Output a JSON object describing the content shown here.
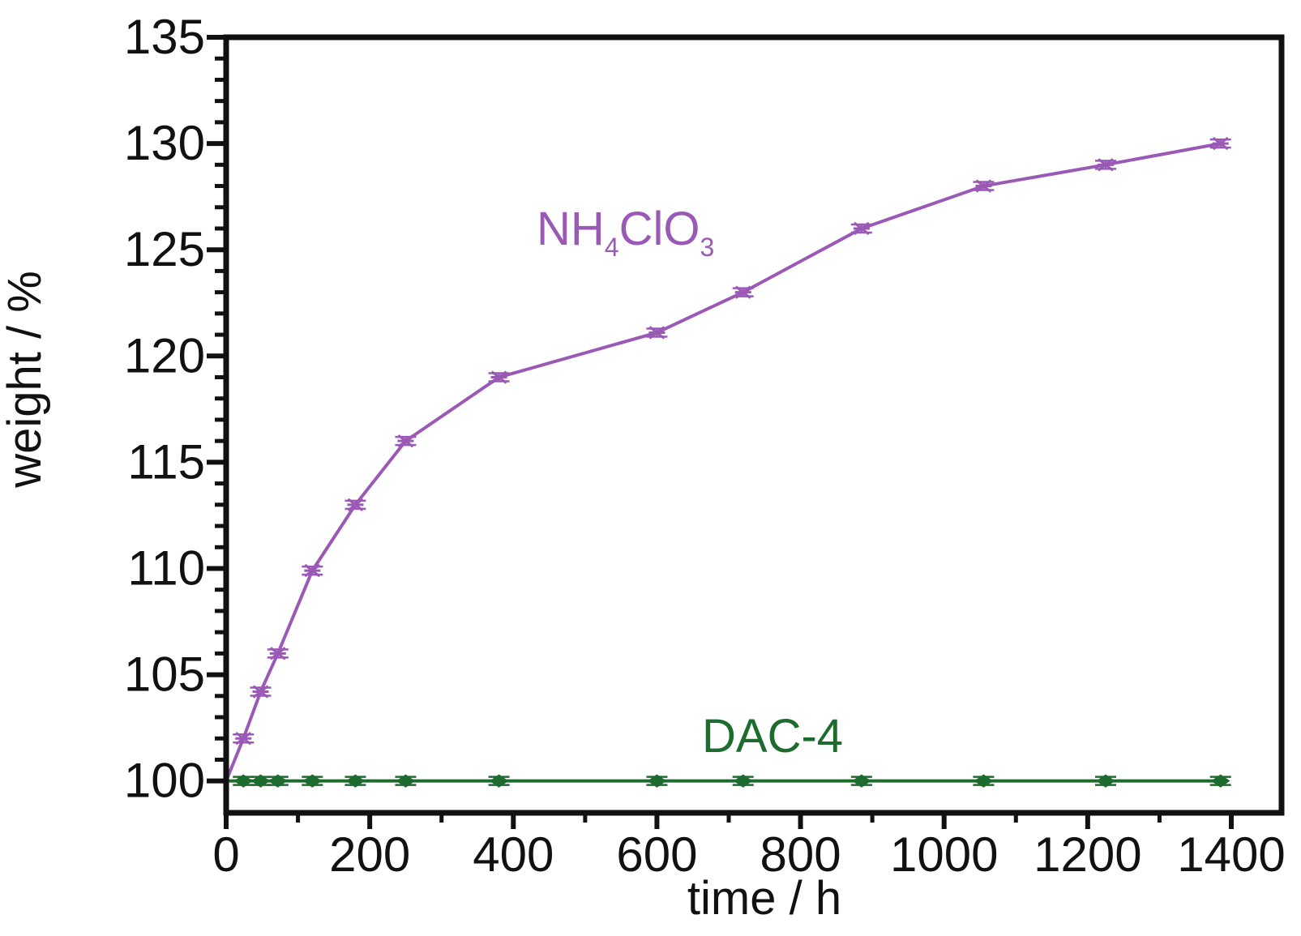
{
  "chart_data": {
    "type": "line",
    "title": "",
    "xlabel": "time / h",
    "ylabel": "weight / %",
    "xlim": [
      0,
      1470
    ],
    "ylim": [
      98.5,
      135
    ],
    "xticks": [
      0,
      200,
      400,
      600,
      800,
      1000,
      1200,
      1400
    ],
    "yticks": [
      100,
      105,
      110,
      115,
      120,
      125,
      130,
      135
    ],
    "xtick_labels": [
      "0",
      "200",
      "400",
      "600",
      "800",
      "1000",
      "1200",
      "1400"
    ],
    "ytick_labels": [
      "100",
      "105",
      "110",
      "115",
      "120",
      "125",
      "130",
      "135"
    ],
    "grid": false,
    "series": [
      {
        "name": "NH4ClO3",
        "label_main_1": "NH",
        "label_sub_1": "4",
        "label_main_2": "ClO",
        "label_sub_2": "3",
        "color": "#9b59b6",
        "marker": "star",
        "error_bars": true,
        "x": [
          0,
          24,
          48,
          72,
          120,
          180,
          250,
          380,
          600,
          720,
          885,
          1055,
          1225,
          1385
        ],
        "y": [
          100,
          102,
          104.2,
          106,
          109.9,
          113,
          116,
          119,
          121.1,
          123,
          126,
          128,
          129,
          130
        ]
      },
      {
        "name": "DAC-4",
        "color": "#1e6b2e",
        "marker": "diamond",
        "error_bars": true,
        "x": [
          0,
          24,
          48,
          72,
          120,
          180,
          250,
          380,
          600,
          720,
          885,
          1055,
          1225,
          1385
        ],
        "y": [
          100,
          100,
          100,
          100,
          100,
          100,
          100,
          100,
          100,
          100,
          100,
          100,
          100,
          100
        ]
      }
    ]
  }
}
